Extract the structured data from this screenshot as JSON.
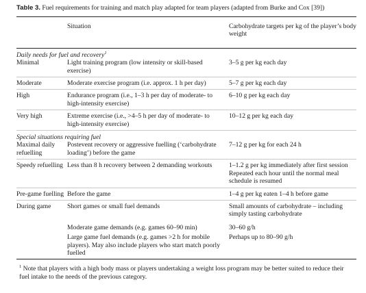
{
  "caption": {
    "label": "Table 3.",
    "text": " Fuel requirements for training and match play adapted for team players (adapted from Burke and Cox [39])"
  },
  "header": {
    "situation": "Situation",
    "targets": "Carbohydrate targets per kg of the player’s body weight"
  },
  "daily": {
    "title": "Daily needs for fuel and recovery",
    "note_marker": "1",
    "rows": [
      {
        "level": "Minimal",
        "situation": "Light training program (low intensity or skill-based exercise)",
        "target": "3–5 g per kg each day"
      },
      {
        "level": "Moderate",
        "situation": "Moderate exercise program (i.e. approx. 1 h per day)",
        "target": "5–7 g per kg each day"
      },
      {
        "level": "High",
        "situation": "Endurance program (i.e., 1–3 h per day of moderate- to high-intensity exercise)",
        "target": "6–10 g per kg each day"
      },
      {
        "level": "Very high",
        "situation": "Extreme exercise (i.e., >4–5 h per day of moderate- to high-intensity exercise)",
        "target": "10–12 g per kg each day"
      }
    ]
  },
  "special": {
    "title": "Special situations requiring fuel",
    "rows": [
      {
        "level": "Maximal daily refuelling",
        "situation": "Postevent recovery or aggressive fuelling (‘carbohydrate loading’) before the game",
        "target": "7–12 g per kg for each 24 h"
      },
      {
        "level": "Speedy refuelling",
        "situation": "Less than 8 h recovery between 2 demanding workouts",
        "target": "1–1.2 g per kg immediately after first session",
        "target2": "Repeated each hour until the normal meal schedule is resumed"
      },
      {
        "level": "Pre-game fuelling",
        "situation": "Before the game",
        "target": "1–4 g per kg eaten 1–4 h before game"
      },
      {
        "level": "During game",
        "situation": "Short games or small fuel demands",
        "target": "Small amounts of carbohydrate – including simply tasting carbohydrate"
      }
    ],
    "during_extra": [
      {
        "situation": "Moderate game demands (e.g. games 60–90 min)",
        "target": "30–60 g/h"
      },
      {
        "situation": "Large game fuel demands (e.g. games >2 h for mobile players). May also include players who start match poorly fuelled",
        "target": "Perhaps up to 80–90 g/h"
      }
    ]
  },
  "footnote": {
    "marker": "1",
    "text": " Note that players with a high body mass or players undertaking a weight loss program may be better suited to reduce their fuel intake to the needs of the previous category."
  }
}
